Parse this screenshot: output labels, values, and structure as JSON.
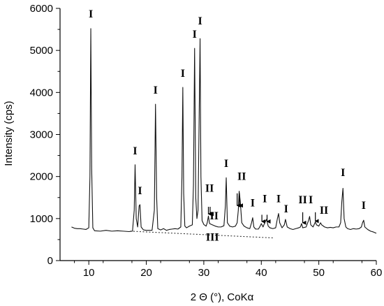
{
  "chart_data": {
    "type": "line",
    "title": "",
    "xlabel": "2 Θ (°), CoKα",
    "ylabel": "Intensity (cps)",
    "xlim": [
      5,
      60
    ],
    "ylim": [
      0,
      6000
    ],
    "x_ticks": [
      "10",
      "20",
      "30",
      "40",
      "50",
      "60"
    ],
    "y_ticks": [
      "0",
      "1000",
      "2000",
      "3000",
      "4000",
      "5000",
      "6000"
    ],
    "grid": false,
    "colors": {
      "line": "#111111",
      "baseline": "#333333"
    },
    "baseline": {
      "style": "dotted",
      "points": [
        [
          17.2,
          700
        ],
        [
          42,
          540
        ]
      ]
    },
    "series": [
      {
        "points": [
          [
            7.0,
            800
          ],
          [
            7.5,
            770
          ],
          [
            8.0,
            760
          ],
          [
            8.5,
            760
          ],
          [
            9.0,
            750
          ],
          [
            9.5,
            740
          ],
          [
            10.0,
            780
          ],
          [
            10.2,
            2000
          ],
          [
            10.35,
            5520
          ],
          [
            10.5,
            2200
          ],
          [
            10.7,
            780
          ],
          [
            11.0,
            710
          ],
          [
            12.0,
            700
          ],
          [
            13.0,
            720
          ],
          [
            14.0,
            700
          ],
          [
            15.0,
            710
          ],
          [
            16.0,
            700
          ],
          [
            17.0,
            690
          ],
          [
            17.6,
            700
          ],
          [
            17.9,
            1200
          ],
          [
            18.05,
            2280
          ],
          [
            18.25,
            1000
          ],
          [
            18.5,
            800
          ],
          [
            18.75,
            1300
          ],
          [
            18.9,
            1330
          ],
          [
            19.1,
            800
          ],
          [
            19.5,
            730
          ],
          [
            20.0,
            720
          ],
          [
            21.0,
            720
          ],
          [
            21.4,
            1200
          ],
          [
            21.6,
            3720
          ],
          [
            21.8,
            1500
          ],
          [
            22.0,
            760
          ],
          [
            22.5,
            730
          ],
          [
            23.0,
            760
          ],
          [
            23.5,
            720
          ],
          [
            24.0,
            740
          ],
          [
            24.5,
            750
          ],
          [
            25.0,
            760
          ],
          [
            25.5,
            750
          ],
          [
            26.0,
            800
          ],
          [
            26.2,
            2000
          ],
          [
            26.35,
            4120
          ],
          [
            26.5,
            1600
          ],
          [
            26.7,
            820
          ],
          [
            27.0,
            780
          ],
          [
            27.5,
            820
          ],
          [
            28.0,
            850
          ],
          [
            28.2,
            1800
          ],
          [
            28.4,
            5050
          ],
          [
            28.6,
            1500
          ],
          [
            28.8,
            1000
          ],
          [
            29.0,
            1200
          ],
          [
            29.2,
            3500
          ],
          [
            29.35,
            5280
          ],
          [
            29.5,
            2000
          ],
          [
            29.7,
            950
          ],
          [
            30.0,
            860
          ],
          [
            30.4,
            820
          ],
          [
            30.6,
            900
          ],
          [
            30.8,
            1060
          ],
          [
            31.0,
            880
          ],
          [
            31.5,
            850
          ],
          [
            32.0,
            820
          ],
          [
            32.5,
            800
          ],
          [
            33.0,
            800
          ],
          [
            33.5,
            830
          ],
          [
            33.75,
            1300
          ],
          [
            33.9,
            1970
          ],
          [
            34.1,
            900
          ],
          [
            34.5,
            820
          ],
          [
            35.0,
            800
          ],
          [
            35.5,
            820
          ],
          [
            35.8,
            900
          ],
          [
            36.0,
            1200
          ],
          [
            36.15,
            1650
          ],
          [
            36.35,
            1400
          ],
          [
            36.6,
            900
          ],
          [
            37.0,
            820
          ],
          [
            37.5,
            780
          ],
          [
            38.0,
            760
          ],
          [
            38.3,
            900
          ],
          [
            38.5,
            1020
          ],
          [
            38.7,
            800
          ],
          [
            39.0,
            750
          ],
          [
            39.5,
            750
          ],
          [
            39.8,
            820
          ],
          [
            40.0,
            880
          ],
          [
            40.3,
            800
          ],
          [
            40.6,
            900
          ],
          [
            40.9,
            980
          ],
          [
            41.2,
            820
          ],
          [
            41.5,
            780
          ],
          [
            42.0,
            760
          ],
          [
            42.5,
            780
          ],
          [
            42.8,
            1000
          ],
          [
            43.0,
            1120
          ],
          [
            43.2,
            900
          ],
          [
            43.6,
            780
          ],
          [
            44.0,
            850
          ],
          [
            44.2,
            980
          ],
          [
            44.5,
            800
          ],
          [
            45.0,
            760
          ],
          [
            45.5,
            740
          ],
          [
            46.0,
            760
          ],
          [
            46.5,
            780
          ],
          [
            46.8,
            800
          ],
          [
            47.0,
            880
          ],
          [
            47.2,
            780
          ],
          [
            47.8,
            800
          ],
          [
            48.2,
            950
          ],
          [
            48.4,
            1050
          ],
          [
            48.6,
            850
          ],
          [
            49.0,
            800
          ],
          [
            49.4,
            920
          ],
          [
            49.6,
            850
          ],
          [
            50.0,
            820
          ],
          [
            50.3,
            900
          ],
          [
            50.5,
            850
          ],
          [
            51.0,
            800
          ],
          [
            51.5,
            780
          ],
          [
            52.0,
            790
          ],
          [
            52.5,
            780
          ],
          [
            53.0,
            800
          ],
          [
            53.5,
            800
          ],
          [
            53.8,
            900
          ],
          [
            54.0,
            1400
          ],
          [
            54.2,
            1720
          ],
          [
            54.4,
            1000
          ],
          [
            54.7,
            800
          ],
          [
            55.0,
            760
          ],
          [
            55.5,
            740
          ],
          [
            56.0,
            760
          ],
          [
            56.5,
            750
          ],
          [
            57.0,
            760
          ],
          [
            57.4,
            800
          ],
          [
            57.6,
            900
          ],
          [
            57.8,
            960
          ],
          [
            58.0,
            800
          ],
          [
            58.5,
            740
          ],
          [
            59.0,
            700
          ],
          [
            59.5,
            680
          ],
          [
            60.0,
            650
          ]
        ]
      }
    ],
    "annotations": [
      {
        "text": "I",
        "x": 10.35,
        "y": 5780
      },
      {
        "text": "I",
        "x": 18.05,
        "y": 2530
      },
      {
        "text": "I",
        "x": 18.9,
        "y": 1580
      },
      {
        "text": "I",
        "x": 21.6,
        "y": 3970
      },
      {
        "text": "I",
        "x": 26.35,
        "y": 4370
      },
      {
        "text": "I",
        "x": 28.4,
        "y": 5300
      },
      {
        "text": "I",
        "x": 29.35,
        "y": 5620
      },
      {
        "text": "II",
        "x": 31.0,
        "y": 1640
      },
      {
        "text": "II",
        "x": 31.8,
        "y": 980
      },
      {
        "text": "I",
        "x": 33.9,
        "y": 2230
      },
      {
        "text": "II",
        "x": 36.6,
        "y": 1920
      },
      {
        "text": "I",
        "x": 38.5,
        "y": 1290
      },
      {
        "text": "I",
        "x": 40.6,
        "y": 1390
      },
      {
        "text": "I",
        "x": 43.0,
        "y": 1390
      },
      {
        "text": "I",
        "x": 44.3,
        "y": 1150
      },
      {
        "text": "II",
        "x": 47.2,
        "y": 1360
      },
      {
        "text": "I",
        "x": 48.6,
        "y": 1360
      },
      {
        "text": "II",
        "x": 50.9,
        "y": 1110
      },
      {
        "text": "I",
        "x": 54.2,
        "y": 2010
      },
      {
        "text": "I",
        "x": 57.8,
        "y": 1230
      },
      {
        "text": "III",
        "x": 31.5,
        "y": 470
      }
    ],
    "arrows": [
      {
        "x": 30.8,
        "y_from": 1280,
        "y_to": 1110
      },
      {
        "x": 31.1,
        "y_from": 1280,
        "y_to": 1110
      },
      {
        "x": 35.8,
        "y_from": 1600,
        "y_to": 1310
      },
      {
        "x": 36.2,
        "y_from": 1600,
        "y_to": 1310
      },
      {
        "x": 40.1,
        "y_from": 1090,
        "y_to": 930
      },
      {
        "x": 41.0,
        "y_from": 1090,
        "y_to": 930
      },
      {
        "x": 47.2,
        "y_from": 1150,
        "y_to": 900
      },
      {
        "x": 49.4,
        "y_from": 1150,
        "y_to": 940
      }
    ]
  }
}
